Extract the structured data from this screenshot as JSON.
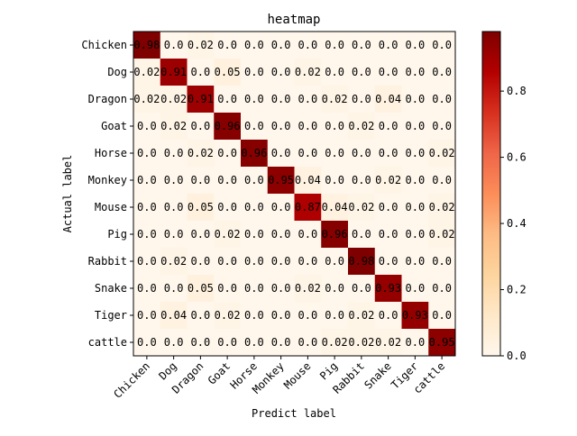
{
  "chart_data": {
    "type": "heatmap",
    "title": "heatmap",
    "xlabel": "Predict label",
    "ylabel": "Actual label",
    "x_categories": [
      "Chicken",
      "Dog",
      "Dragon",
      "Goat",
      "Horse",
      "Monkey",
      "Mouse",
      "Pig",
      "Rabbit",
      "Snake",
      "Tiger",
      "cattle"
    ],
    "y_categories": [
      "Chicken",
      "Dog",
      "Dragon",
      "Goat",
      "Horse",
      "Monkey",
      "Mouse",
      "Pig",
      "Rabbit",
      "Snake",
      "Tiger",
      "cattle"
    ],
    "values": [
      [
        0.98,
        0.0,
        0.02,
        0.0,
        0.0,
        0.0,
        0.0,
        0.0,
        0.0,
        0.0,
        0.0,
        0.0
      ],
      [
        0.02,
        0.91,
        0.0,
        0.05,
        0.0,
        0.0,
        0.02,
        0.0,
        0.0,
        0.0,
        0.0,
        0.0
      ],
      [
        0.02,
        0.02,
        0.91,
        0.0,
        0.0,
        0.0,
        0.0,
        0.02,
        0.0,
        0.04,
        0.0,
        0.0
      ],
      [
        0.0,
        0.02,
        0.0,
        0.96,
        0.0,
        0.0,
        0.0,
        0.0,
        0.02,
        0.0,
        0.0,
        0.0
      ],
      [
        0.0,
        0.0,
        0.02,
        0.0,
        0.96,
        0.0,
        0.0,
        0.0,
        0.0,
        0.0,
        0.0,
        0.02
      ],
      [
        0.0,
        0.0,
        0.0,
        0.0,
        0.0,
        0.95,
        0.04,
        0.0,
        0.0,
        0.02,
        0.0,
        0.0
      ],
      [
        0.0,
        0.0,
        0.05,
        0.0,
        0.0,
        0.0,
        0.87,
        0.04,
        0.02,
        0.0,
        0.0,
        0.02
      ],
      [
        0.0,
        0.0,
        0.0,
        0.02,
        0.0,
        0.0,
        0.0,
        0.96,
        0.0,
        0.0,
        0.0,
        0.02
      ],
      [
        0.0,
        0.02,
        0.0,
        0.0,
        0.0,
        0.0,
        0.0,
        0.0,
        0.98,
        0.0,
        0.0,
        0.0
      ],
      [
        0.0,
        0.0,
        0.05,
        0.0,
        0.0,
        0.0,
        0.02,
        0.0,
        0.0,
        0.93,
        0.0,
        0.0
      ],
      [
        0.0,
        0.04,
        0.0,
        0.02,
        0.0,
        0.0,
        0.0,
        0.0,
        0.02,
        0.0,
        0.93,
        0.0
      ],
      [
        0.0,
        0.0,
        0.0,
        0.0,
        0.0,
        0.0,
        0.0,
        0.02,
        0.02,
        0.02,
        0.0,
        0.95
      ]
    ],
    "colormap": "OrRd",
    "vmin": 0.0,
    "vmax": 0.98,
    "colorbar_ticks": [
      "0.0",
      "0.2",
      "0.4",
      "0.6",
      "0.8"
    ],
    "colorbar_tick_values": [
      0.0,
      0.2,
      0.4,
      0.6,
      0.8
    ],
    "colormap_stops": [
      "#fff7ec",
      "#fee8c8",
      "#fdd49e",
      "#fdbb84",
      "#fc8d59",
      "#ef6548",
      "#d7301f",
      "#b30000",
      "#7f0000"
    ]
  }
}
